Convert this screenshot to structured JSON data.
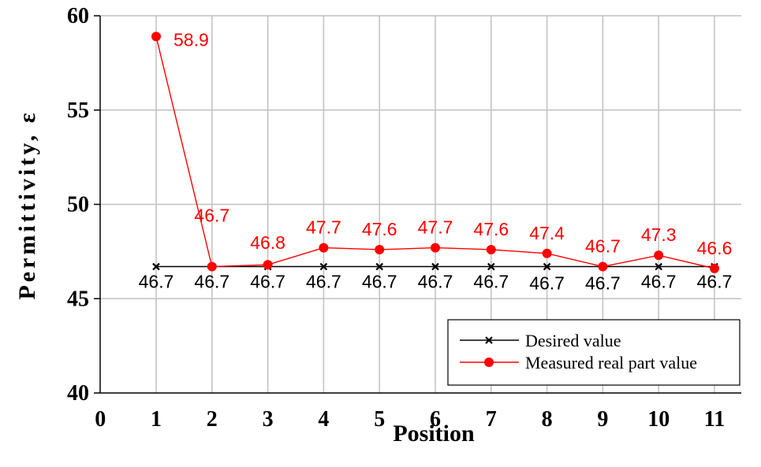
{
  "chart_data": {
    "type": "line",
    "xlabel": "Position",
    "ylabel": "Permittivity, ε",
    "xlim": [
      0,
      11
    ],
    "ylim": [
      40,
      60
    ],
    "yticks": [
      40,
      45,
      50,
      55,
      60
    ],
    "xtick_labels": [
      "0",
      "1",
      "2",
      "3",
      "4",
      "5",
      "6",
      "7",
      "8",
      "9",
      "10",
      "11"
    ],
    "x": [
      1,
      2,
      3,
      4,
      5,
      6,
      7,
      8,
      9,
      10,
      11
    ],
    "grid": true,
    "legend": "bottom-right",
    "series": [
      {
        "name": "Desired value",
        "color": "#000000",
        "marker": "x",
        "values": [
          46.7,
          46.7,
          46.7,
          46.7,
          46.7,
          46.7,
          46.7,
          46.7,
          46.7,
          46.7,
          46.7
        ],
        "labels": [
          "46.7",
          "46.7",
          "46.7",
          "46.7",
          "46.7",
          "46.7",
          "46.7",
          "46.7",
          "46.7",
          "46.7",
          "46.7"
        ]
      },
      {
        "name": "Measured real part value",
        "color": "#ff0000",
        "marker": "circle",
        "values": [
          58.9,
          46.7,
          46.8,
          47.7,
          47.6,
          47.7,
          47.6,
          47.4,
          46.7,
          47.3,
          46.6
        ],
        "labels": [
          "58.9",
          "46.7",
          "46.8",
          "47.7",
          "47.6",
          "47.7",
          "47.6",
          "47.4",
          "46.7",
          "47.3",
          "46.6"
        ]
      }
    ]
  }
}
